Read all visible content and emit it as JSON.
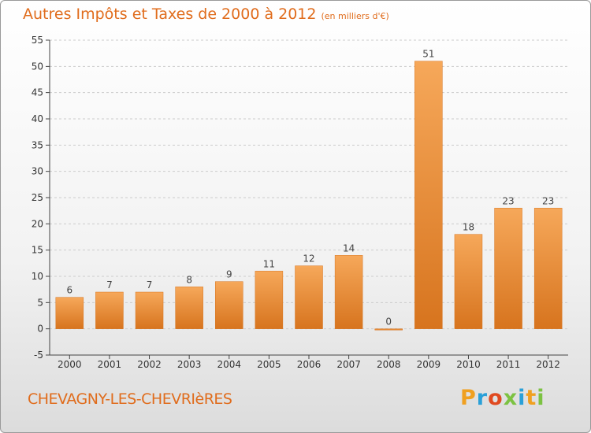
{
  "header": {
    "title": "Autres Impôts et Taxes de 2000 à 2012",
    "subtitle": "(en milliers d'€)"
  },
  "footer": {
    "commune": "CHEVAGNY-LES-CHEVRIèRES",
    "logo_text": "Proxiti"
  },
  "colors": {
    "accent": "#e06c1c",
    "bar_light": "#f6a85a",
    "bar_dark": "#d7741e",
    "grid": "#cccccc",
    "logo_letters": [
      "#f0a020",
      "#2aa0d8",
      "#e04a20",
      "#7cc242",
      "#2aa0d8",
      "#f0a020",
      "#7cc242"
    ]
  },
  "chart_data": {
    "type": "bar",
    "title": "Autres Impôts et Taxes de 2000 à 2012",
    "subtitle": "(en milliers d'€)",
    "categories": [
      "2000",
      "2001",
      "2002",
      "2003",
      "2004",
      "2005",
      "2006",
      "2007",
      "2008",
      "2009",
      "2010",
      "2011",
      "2012"
    ],
    "values": [
      6,
      7,
      7,
      8,
      9,
      11,
      12,
      14,
      0,
      51,
      18,
      23,
      23
    ],
    "ylim": [
      -5,
      55
    ],
    "yticks": [
      -5,
      0,
      5,
      10,
      15,
      20,
      25,
      30,
      35,
      40,
      45,
      50,
      55
    ],
    "grid": true,
    "legend": "none"
  }
}
